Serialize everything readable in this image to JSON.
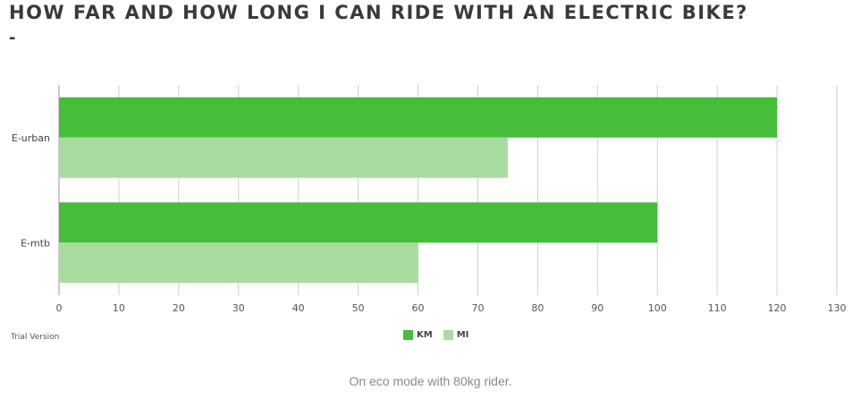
{
  "page": {
    "title": "HOW FAR AND HOW LONG I CAN RIDE WITH AN ELECTRIC BIKE?",
    "subtitle_dash": "-",
    "watermark": "Trial Version",
    "caption": "On eco mode with 80kg rider."
  },
  "chart_data": {
    "type": "bar",
    "orientation": "horizontal",
    "categories": [
      "E-urban",
      "E-mtb"
    ],
    "series": [
      {
        "name": "KM",
        "values": [
          120,
          100
        ],
        "color": "#46bd3b"
      },
      {
        "name": "MI",
        "values": [
          75,
          60
        ],
        "color": "#a8dc9f"
      }
    ],
    "xlim": [
      0,
      130
    ],
    "xticks": [
      0,
      10,
      20,
      30,
      40,
      50,
      60,
      70,
      80,
      90,
      100,
      110,
      120,
      130
    ],
    "grid": true,
    "legend_position": "bottom-center"
  }
}
